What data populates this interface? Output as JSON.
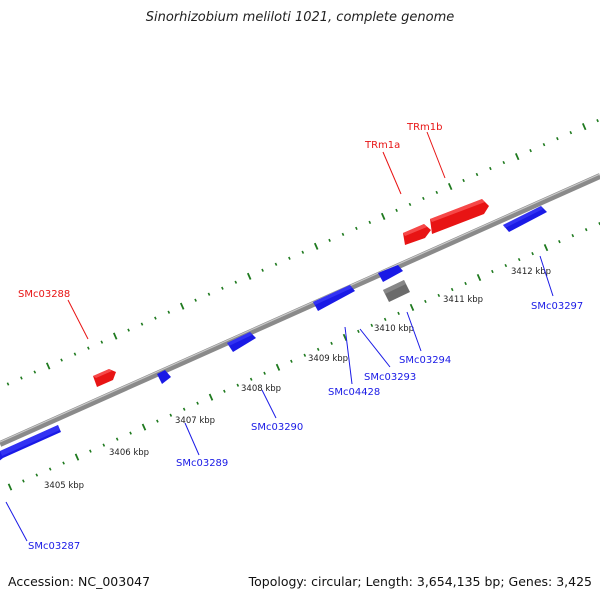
{
  "title": "Sinorhizobium meliloti 1021, complete genome",
  "footer": {
    "accession": "Accession: NC_003047",
    "topology": "Topology: circular; Length: 3,654,135 bp; Genes: 3,425"
  },
  "colors": {
    "forward_gene": "#e81414",
    "reverse_gene": "#1a1ae6",
    "other_feature": "#6b6b6b",
    "tick": "#1f7a1f",
    "backbone": "#8a8a8a"
  },
  "ruler_labels": [
    "3405 kbp",
    "3406 kbp",
    "3407 kbp",
    "3408 kbp",
    "3409 kbp",
    "3410 kbp",
    "3411 kbp",
    "3412 kbp"
  ],
  "genes": [
    {
      "name": "SMc03287",
      "strand": "reverse"
    },
    {
      "name": "SMc03288",
      "strand": "forward"
    },
    {
      "name": "SMc03289",
      "strand": "reverse"
    },
    {
      "name": "SMc03290",
      "strand": "reverse"
    },
    {
      "name": "SMc04428",
      "strand": "reverse"
    },
    {
      "name": "SMc03293",
      "strand": "reverse"
    },
    {
      "name": "SMc03294",
      "strand": "reverse"
    },
    {
      "name": "TRm1a",
      "strand": "forward"
    },
    {
      "name": "TRm1b",
      "strand": "forward"
    },
    {
      "name": "SMc03297",
      "strand": "reverse"
    }
  ]
}
